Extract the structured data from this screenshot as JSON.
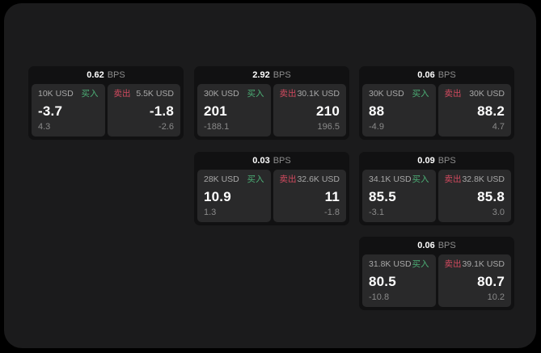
{
  "labels": {
    "bps_unit": "BPS",
    "buy": "买入",
    "sell": "卖出"
  },
  "colors": {
    "page_background": "#000000",
    "frame_background": "#1b1b1c",
    "card_background": "#111112",
    "panel_background": "#29292a",
    "buy_green": "#4caf76",
    "sell_red": "#d24a5f",
    "value_white": "#ffffff",
    "muted_gray": "#8a8a8a"
  },
  "cards": [
    {
      "bps": "0.62",
      "buy": {
        "amount": "10K USD",
        "value": "-3.7",
        "change": "4.3"
      },
      "sell": {
        "amount": "5.5K USD",
        "value": "-1.8",
        "change": "-2.6"
      }
    },
    {
      "bps": "2.92",
      "buy": {
        "amount": "30K USD",
        "value": "201",
        "change": "-188.1"
      },
      "sell": {
        "amount": "30.1K USD",
        "value": "210",
        "change": "196.5"
      }
    },
    {
      "bps": "0.06",
      "buy": {
        "amount": "30K USD",
        "value": "88",
        "change": "-4.9"
      },
      "sell": {
        "amount": "30K USD",
        "value": "88.2",
        "change": "4.7"
      }
    },
    {
      "bps": "0.03",
      "buy": {
        "amount": "28K USD",
        "value": "10.9",
        "change": "1.3"
      },
      "sell": {
        "amount": "32.6K USD",
        "value": "11",
        "change": "-1.8"
      }
    },
    {
      "bps": "0.09",
      "buy": {
        "amount": "34.1K USD",
        "value": "85.5",
        "change": "-3.1"
      },
      "sell": {
        "amount": "32.8K USD",
        "value": "85.8",
        "change": "3.0"
      }
    },
    {
      "bps": "0.06",
      "buy": {
        "amount": "31.8K USD",
        "value": "80.5",
        "change": "-10.8"
      },
      "sell": {
        "amount": "39.1K USD",
        "value": "80.7",
        "change": "10.2"
      }
    }
  ]
}
